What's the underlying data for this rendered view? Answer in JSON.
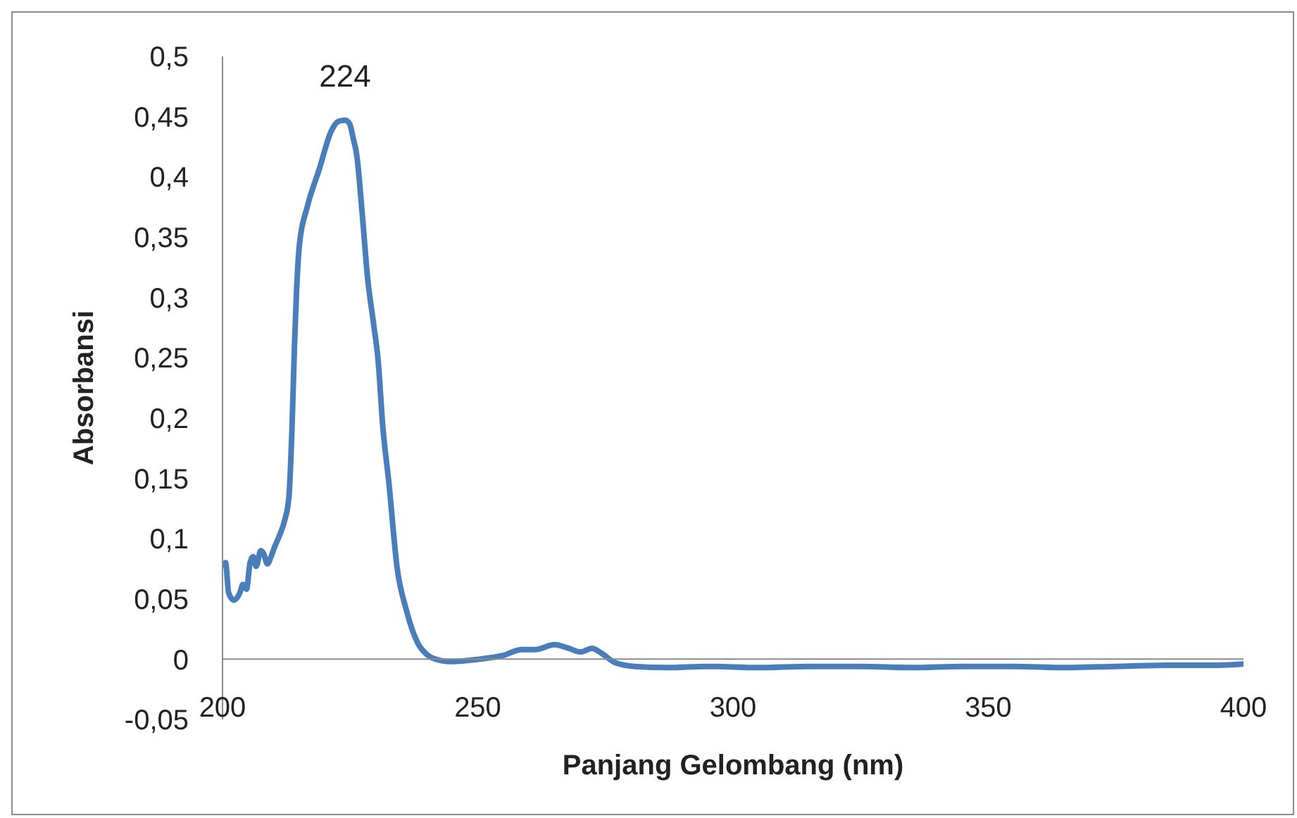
{
  "chart_data": {
    "type": "line",
    "xlabel": "Panjang Gelombang (nm)",
    "ylabel": "Absorbansi",
    "color": "#4a7ebb",
    "xlim": [
      200,
      400
    ],
    "xticks": [
      200,
      250,
      300,
      350,
      400
    ],
    "ylim": [
      -0.05,
      0.5
    ],
    "yticks": [
      {
        "value": -0.05,
        "label": "-0,05"
      },
      0,
      {
        "value": 0.05,
        "label": "0,05"
      },
      {
        "value": 0.1,
        "label": "0,1"
      },
      {
        "value": 0.15,
        "label": "0,15"
      },
      {
        "value": 0.2,
        "label": "0,2"
      },
      {
        "value": 0.25,
        "label": "0,25"
      },
      {
        "value": 0.3,
        "label": "0,3"
      },
      {
        "value": 0.35,
        "label": "0,35"
      },
      {
        "value": 0.4,
        "label": "0,4"
      },
      {
        "value": 0.45,
        "label": "0,45"
      },
      {
        "value": 0.5,
        "label": "0,5"
      }
    ],
    "x": [
      200,
      200.6,
      201.2,
      202.2,
      203.4,
      204,
      204.7,
      205.4,
      206,
      206.6,
      207.5,
      208,
      208.8,
      209.5,
      210.2,
      211.2,
      212.1,
      213,
      213.6,
      214.1,
      214.5,
      215.1,
      216.6,
      219,
      221.3,
      222.7,
      224,
      224.9,
      225.6,
      226.3,
      227.4,
      228.4,
      229.6,
      230.5,
      231.4,
      232.6,
      234.2,
      236,
      238.3,
      240,
      241.1,
      244.8,
      250.3,
      254.9,
      258.6,
      261.3,
      265,
      267.8,
      270.1,
      272.4,
      274.2,
      277,
      280.7,
      287,
      295,
      305,
      315,
      325,
      335,
      345,
      355,
      365,
      375,
      385,
      395,
      400
    ],
    "values": [
      0.078,
      0.08,
      0.055,
      0.049,
      0.055,
      0.062,
      0.058,
      0.08,
      0.085,
      0.077,
      0.09,
      0.088,
      0.079,
      0.085,
      0.093,
      0.103,
      0.114,
      0.134,
      0.19,
      0.26,
      0.305,
      0.345,
      0.375,
      0.407,
      0.438,
      0.446,
      0.447,
      0.444,
      0.432,
      0.418,
      0.368,
      0.317,
      0.278,
      0.247,
      0.193,
      0.146,
      0.076,
      0.041,
      0.013,
      0.004,
      0.001,
      -0.002,
      0,
      0.003,
      0.008,
      0.008,
      0.012,
      0.009,
      0.006,
      0.009,
      0.005,
      -0.003,
      -0.006,
      -0.007,
      -0.006,
      -0.007,
      -0.006,
      -0.006,
      -0.007,
      -0.006,
      -0.006,
      -0.007,
      -0.006,
      -0.005,
      -0.005,
      -0.004
    ],
    "annotations": [
      {
        "text": "224",
        "x": 224,
        "y": 0.447
      }
    ]
  }
}
